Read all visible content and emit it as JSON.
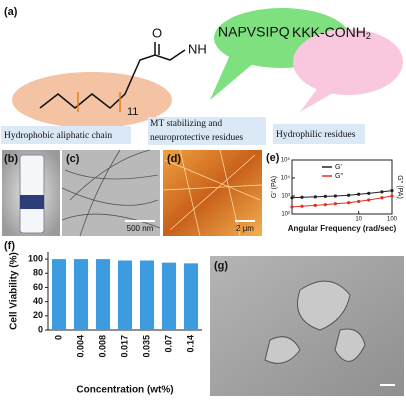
{
  "panels": [
    "(a)",
    "(b)",
    "(c)",
    "(d)",
    "(e)",
    "(f)",
    "(g)"
  ],
  "molecule": {
    "oxygen": "O",
    "amide": "NH",
    "chain_repeat": "11",
    "peptide_core": "NAPVSIPQ",
    "peptide_tail": "KKK-CONH",
    "tail_subscript": "2"
  },
  "regions": [
    "Hydrophobic aliphatic chain",
    "MT stabilizing and",
    "neuroprotective residues",
    "Hydrophilic residues"
  ],
  "scale_bars": [
    "500 nm",
    "2 μm"
  ],
  "chart_data": [
    {
      "type": "line",
      "xlabel": "Angular Frequency (rad/sec)",
      "ylabel": "G' (PA)",
      "y2label": "G'' (PA)",
      "x": [
        0.1,
        0.2,
        0.5,
        1,
        2,
        5,
        10,
        20,
        50,
        100
      ],
      "series": [
        {
          "name": "G'",
          "color": "#222222",
          "values": [
            800,
            850,
            900,
            950,
            1000,
            1100,
            1250,
            1400,
            1700,
            2000
          ]
        },
        {
          "name": "G''",
          "color": "#e03020",
          "values": [
            250,
            270,
            300,
            330,
            370,
            420,
            500,
            600,
            800,
            1000
          ]
        }
      ],
      "xlim": [
        0.1,
        100
      ],
      "xticks": [
        10,
        100
      ],
      "xlog": true,
      "ylim": [
        100,
        100000
      ],
      "ylog": true,
      "yticks": [
        {
          "value": 100,
          "label": "10²"
        },
        {
          "value": 1000,
          "label": "10³"
        },
        {
          "value": 10000,
          "label": "10⁴"
        },
        {
          "value": 100000,
          "label": "10⁵"
        }
      ],
      "legend": "upper left"
    },
    {
      "type": "bar",
      "xlabel": "Concentration (wt%)",
      "ylabel": "Cell Viability (%)",
      "categories": [
        "0",
        "0.004",
        "0.008",
        "0.017",
        "0.035",
        "0.07",
        "0.14"
      ],
      "values": [
        100,
        100,
        100,
        98,
        98,
        95,
        94
      ],
      "color": "#3d9be0",
      "ylim": [
        0,
        110
      ],
      "yticks": [
        0,
        20,
        40,
        60,
        80,
        100
      ],
      "grid": false
    }
  ]
}
